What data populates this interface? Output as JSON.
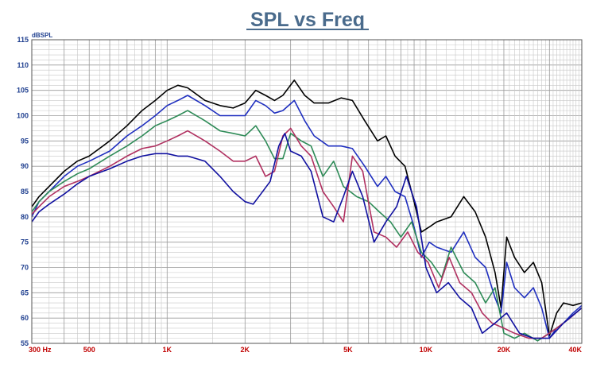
{
  "chart_data": {
    "type": "line",
    "title": "SPL vs Freq",
    "ylabel": "dBSPL",
    "xlabel": "",
    "xscale": "log",
    "xlim": [
      300,
      40000
    ],
    "ylim": [
      55,
      115
    ],
    "grid": true,
    "legend": "none",
    "y_ticks": [
      "115",
      "110",
      "105",
      "100",
      "95",
      "90",
      "85",
      "80",
      "75",
      "70",
      "65",
      "60",
      "55"
    ],
    "x_ticks": [
      {
        "value": 300,
        "label": "300 Hz"
      },
      {
        "value": 500,
        "label": "500"
      },
      {
        "value": 1000,
        "label": "1K"
      },
      {
        "value": 2000,
        "label": "2K"
      },
      {
        "value": 5000,
        "label": "5K"
      },
      {
        "value": 10000,
        "label": "10K"
      },
      {
        "value": 20000,
        "label": "20K"
      },
      {
        "value": 40000,
        "label": "40K"
      }
    ],
    "series": [
      {
        "color": "#000000",
        "points": [
          [
            300,
            82
          ],
          [
            320,
            84
          ],
          [
            350,
            86
          ],
          [
            400,
            89
          ],
          [
            450,
            91
          ],
          [
            500,
            92
          ],
          [
            600,
            95
          ],
          [
            700,
            98
          ],
          [
            800,
            101
          ],
          [
            900,
            103
          ],
          [
            1000,
            105
          ],
          [
            1100,
            106
          ],
          [
            1200,
            105.5
          ],
          [
            1400,
            103
          ],
          [
            1600,
            102
          ],
          [
            1800,
            101.5
          ],
          [
            2000,
            102.5
          ],
          [
            2200,
            105
          ],
          [
            2400,
            104
          ],
          [
            2600,
            103
          ],
          [
            2800,
            104
          ],
          [
            3100,
            107
          ],
          [
            3400,
            104
          ],
          [
            3700,
            102.5
          ],
          [
            4200,
            102.5
          ],
          [
            4700,
            103.5
          ],
          [
            5200,
            103
          ],
          [
            5800,
            99
          ],
          [
            6500,
            95
          ],
          [
            7000,
            96
          ],
          [
            7600,
            92
          ],
          [
            8300,
            90
          ],
          [
            9000,
            83
          ],
          [
            9600,
            77
          ],
          [
            10300,
            78
          ],
          [
            11000,
            79
          ],
          [
            12500,
            80
          ],
          [
            14000,
            84
          ],
          [
            15500,
            81
          ],
          [
            17000,
            76
          ],
          [
            18500,
            69
          ],
          [
            19500,
            62
          ],
          [
            20500,
            76
          ],
          [
            22000,
            72
          ],
          [
            24000,
            69
          ],
          [
            26000,
            71
          ],
          [
            28000,
            67
          ],
          [
            30000,
            56.5
          ],
          [
            32000,
            61
          ],
          [
            34000,
            63
          ],
          [
            37000,
            62.5
          ],
          [
            40000,
            63
          ]
        ]
      },
      {
        "color": "#1f2fbf",
        "points": [
          [
            300,
            80
          ],
          [
            320,
            83
          ],
          [
            350,
            85
          ],
          [
            400,
            88
          ],
          [
            450,
            90
          ],
          [
            500,
            91
          ],
          [
            600,
            93
          ],
          [
            700,
            96
          ],
          [
            800,
            98
          ],
          [
            900,
            100
          ],
          [
            1000,
            102
          ],
          [
            1100,
            103
          ],
          [
            1200,
            104
          ],
          [
            1400,
            102
          ],
          [
            1600,
            100
          ],
          [
            1800,
            100
          ],
          [
            2000,
            100
          ],
          [
            2200,
            103
          ],
          [
            2400,
            102
          ],
          [
            2600,
            100.5
          ],
          [
            2800,
            101
          ],
          [
            3100,
            103
          ],
          [
            3400,
            99
          ],
          [
            3700,
            96
          ],
          [
            4200,
            94
          ],
          [
            4700,
            94
          ],
          [
            5200,
            93.5
          ],
          [
            5800,
            90
          ],
          [
            6500,
            86
          ],
          [
            7000,
            88
          ],
          [
            7600,
            85
          ],
          [
            8300,
            84
          ],
          [
            9000,
            78
          ],
          [
            9600,
            72
          ],
          [
            10300,
            75
          ],
          [
            11000,
            74
          ],
          [
            12500,
            73
          ],
          [
            14000,
            77
          ],
          [
            15500,
            72
          ],
          [
            17000,
            70
          ],
          [
            18500,
            64
          ],
          [
            19500,
            61
          ],
          [
            20500,
            71
          ],
          [
            22000,
            66
          ],
          [
            24000,
            64
          ],
          [
            26000,
            66
          ],
          [
            28000,
            62
          ],
          [
            30000,
            56
          ],
          [
            32000,
            58
          ],
          [
            34000,
            59
          ],
          [
            37000,
            61
          ],
          [
            40000,
            62.5
          ]
        ]
      },
      {
        "color": "#2e8b57",
        "points": [
          [
            300,
            81
          ],
          [
            320,
            83
          ],
          [
            350,
            85
          ],
          [
            400,
            87
          ],
          [
            450,
            88.5
          ],
          [
            500,
            89.5
          ],
          [
            600,
            92
          ],
          [
            700,
            94
          ],
          [
            800,
            96
          ],
          [
            900,
            98
          ],
          [
            1000,
            99
          ],
          [
            1100,
            100
          ],
          [
            1200,
            101
          ],
          [
            1400,
            99
          ],
          [
            1600,
            97
          ],
          [
            1800,
            96.5
          ],
          [
            2000,
            96
          ],
          [
            2200,
            98
          ],
          [
            2400,
            95
          ],
          [
            2600,
            91.5
          ],
          [
            2800,
            91.5
          ],
          [
            3000,
            96.5
          ],
          [
            3300,
            95
          ],
          [
            3600,
            94
          ],
          [
            4000,
            88
          ],
          [
            4400,
            91
          ],
          [
            4800,
            86
          ],
          [
            5400,
            84
          ],
          [
            6000,
            83
          ],
          [
            6600,
            81
          ],
          [
            7300,
            79
          ],
          [
            8000,
            76
          ],
          [
            8800,
            79
          ],
          [
            9600,
            73
          ],
          [
            10500,
            71
          ],
          [
            11500,
            68
          ],
          [
            12500,
            74
          ],
          [
            14000,
            69
          ],
          [
            15500,
            67
          ],
          [
            17000,
            63
          ],
          [
            18500,
            66
          ],
          [
            20000,
            57
          ],
          [
            22000,
            56
          ],
          [
            24000,
            57
          ],
          [
            27000,
            55.5
          ],
          [
            30000,
            57
          ],
          [
            34000,
            59
          ],
          [
            40000,
            62
          ]
        ]
      },
      {
        "color": "#b03060",
        "points": [
          [
            300,
            80.5
          ],
          [
            320,
            82
          ],
          [
            350,
            84
          ],
          [
            400,
            86
          ],
          [
            450,
            87
          ],
          [
            500,
            88
          ],
          [
            600,
            90
          ],
          [
            700,
            92
          ],
          [
            800,
            93.5
          ],
          [
            900,
            94
          ],
          [
            1000,
            95
          ],
          [
            1100,
            96
          ],
          [
            1200,
            97
          ],
          [
            1400,
            95
          ],
          [
            1600,
            93
          ],
          [
            1800,
            91
          ],
          [
            2000,
            91
          ],
          [
            2200,
            92
          ],
          [
            2400,
            88
          ],
          [
            2600,
            89
          ],
          [
            2800,
            96
          ],
          [
            3000,
            97.5
          ],
          [
            3300,
            94
          ],
          [
            3600,
            92
          ],
          [
            4000,
            85
          ],
          [
            4400,
            82
          ],
          [
            4800,
            79
          ],
          [
            5200,
            92
          ],
          [
            5700,
            89
          ],
          [
            6300,
            77
          ],
          [
            7000,
            76
          ],
          [
            7700,
            74
          ],
          [
            8500,
            77
          ],
          [
            9300,
            73
          ],
          [
            10200,
            71
          ],
          [
            11200,
            66
          ],
          [
            12300,
            72
          ],
          [
            13500,
            67
          ],
          [
            15000,
            65
          ],
          [
            16500,
            61
          ],
          [
            18000,
            59
          ],
          [
            20000,
            58
          ],
          [
            22000,
            57
          ],
          [
            25000,
            56
          ],
          [
            28000,
            56
          ],
          [
            32000,
            58
          ],
          [
            36000,
            60
          ],
          [
            40000,
            62
          ]
        ]
      },
      {
        "color": "#1010a0",
        "points": [
          [
            300,
            79
          ],
          [
            320,
            81
          ],
          [
            350,
            82.5
          ],
          [
            400,
            84.5
          ],
          [
            450,
            86.5
          ],
          [
            500,
            88
          ],
          [
            600,
            89.5
          ],
          [
            700,
            91
          ],
          [
            800,
            92
          ],
          [
            900,
            92.5
          ],
          [
            1000,
            92.5
          ],
          [
            1100,
            92
          ],
          [
            1200,
            92
          ],
          [
            1400,
            91
          ],
          [
            1600,
            88
          ],
          [
            1800,
            85
          ],
          [
            2000,
            83
          ],
          [
            2150,
            82.5
          ],
          [
            2300,
            84.5
          ],
          [
            2500,
            87
          ],
          [
            2700,
            94
          ],
          [
            2850,
            96.5
          ],
          [
            3000,
            93
          ],
          [
            3300,
            92
          ],
          [
            3600,
            89
          ],
          [
            4000,
            80
          ],
          [
            4400,
            79
          ],
          [
            4800,
            84
          ],
          [
            5200,
            89
          ],
          [
            5700,
            84
          ],
          [
            6300,
            75
          ],
          [
            7000,
            79
          ],
          [
            7700,
            82
          ],
          [
            8400,
            88
          ],
          [
            9200,
            82
          ],
          [
            10000,
            70
          ],
          [
            11000,
            65
          ],
          [
            12200,
            67
          ],
          [
            13500,
            64
          ],
          [
            15000,
            62
          ],
          [
            16500,
            57
          ],
          [
            18500,
            59
          ],
          [
            20500,
            61
          ],
          [
            23000,
            57
          ],
          [
            26000,
            56
          ],
          [
            30000,
            56
          ],
          [
            34000,
            59
          ],
          [
            40000,
            62
          ]
        ]
      }
    ]
  }
}
